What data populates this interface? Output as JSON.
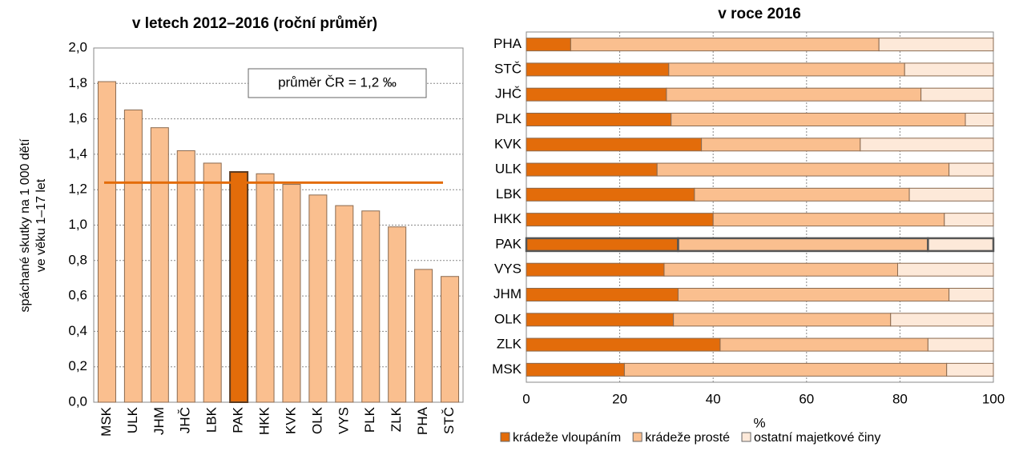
{
  "chart_data": [
    {
      "type": "bar",
      "title": "v letech 2012–2016 (roční průměr)",
      "ylabel": [
        "spáchané skutky na 1 000 dětí",
        "ve věku 1–17 let"
      ],
      "categories": [
        "MSK",
        "ULK",
        "JHM",
        "JHČ",
        "LBK",
        "PAK",
        "HKK",
        "KVK",
        "OLK",
        "VYS",
        "PLK",
        "ZLK",
        "PHA",
        "STČ"
      ],
      "values": [
        1.81,
        1.65,
        1.55,
        1.42,
        1.35,
        1.3,
        1.29,
        1.23,
        1.17,
        1.11,
        1.08,
        0.99,
        0.75,
        0.71
      ],
      "color": "#fabf8f",
      "highlight": "PAK",
      "highlight_color": "#e36c0a",
      "average": 1.24,
      "average_color": "#e36c0a",
      "annotation": "průměr ČR = 1,2 ‰",
      "ylim": [
        0,
        2
      ],
      "yticks": [
        {
          "value": 0,
          "label": "0,0"
        },
        {
          "value": 0.2,
          "label": "0,2"
        },
        {
          "value": 0.4,
          "label": "0,4"
        },
        {
          "value": 0.6,
          "label": "0,6"
        },
        {
          "value": 0.8,
          "label": "0,8"
        },
        {
          "value": 1,
          "label": "1,0"
        },
        {
          "value": 1.2,
          "label": "1,2"
        },
        {
          "value": 1.4,
          "label": "1,4"
        },
        {
          "value": 1.6,
          "label": "1,6"
        },
        {
          "value": 1.8,
          "label": "1,8"
        },
        {
          "value": 2,
          "label": "2,0"
        }
      ],
      "grid": true
    },
    {
      "type": "stacked_barh",
      "title": "v roce 2016",
      "xlabel": "%",
      "categories": [
        "PHA",
        "STČ",
        "JHČ",
        "PLK",
        "KVK",
        "ULK",
        "LBK",
        "HKK",
        "PAK",
        "VYS",
        "JHM",
        "OLK",
        "ZLK",
        "MSK"
      ],
      "series": [
        {
          "name": "krádeže vloupáním",
          "color": "#e36c0a",
          "values": [
            9.5,
            30.5,
            30,
            31,
            37.5,
            28,
            36,
            40,
            32.5,
            29.5,
            32.5,
            31.5,
            41.5,
            21
          ]
        },
        {
          "name": "krádeže prosté",
          "color": "#fabf8f",
          "values": [
            66,
            50.5,
            54.5,
            63,
            34,
            62.5,
            46,
            49.5,
            53.5,
            50,
            58,
            46.5,
            44.5,
            69
          ]
        },
        {
          "name": "ostatní majetkové činy",
          "color": "#fde9d9",
          "values": [
            24.5,
            19,
            15.5,
            6,
            28.5,
            9.5,
            18,
            10.5,
            14,
            20.5,
            9.5,
            22,
            14,
            10
          ]
        }
      ],
      "highlight": "PAK",
      "xlim": [
        0,
        100
      ],
      "xticks": [
        0,
        20,
        40,
        60,
        80,
        100
      ],
      "grid": true
    }
  ]
}
